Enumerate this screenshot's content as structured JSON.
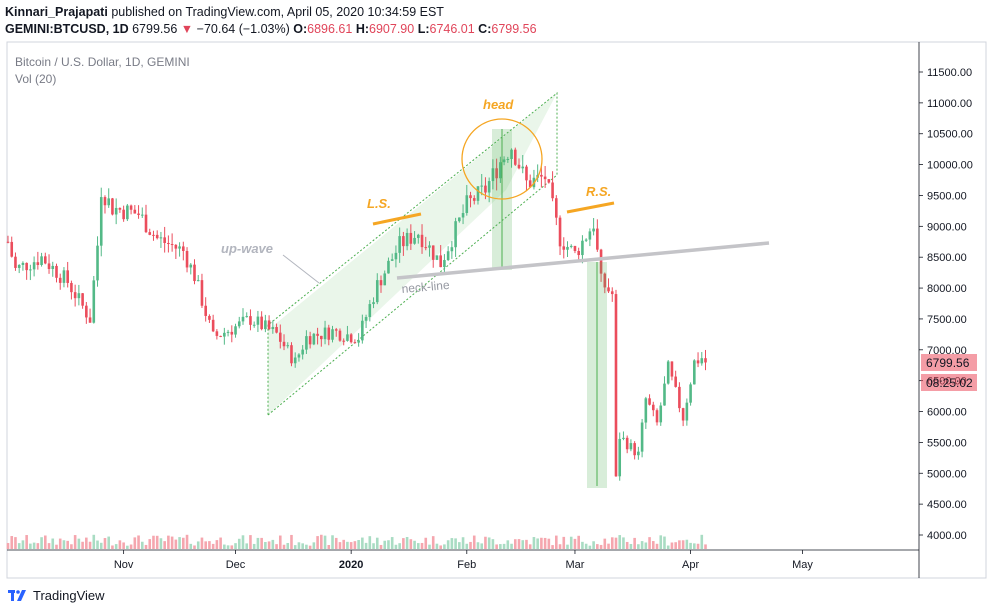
{
  "header": {
    "author": "Kinnari_Prajapati",
    "published_text": "published on TradingView.com, April 05, 2020 10:34:59 EST",
    "symbol": "GEMINI:BTCUSD, 1D",
    "last_price": "6799.56",
    "change_arrow": "▼",
    "change": "−70.64 (−1.03%)",
    "open_label": "O:",
    "open": "6896.61",
    "high_label": "H:",
    "high": "6907.90",
    "low_label": "L:",
    "low": "6746.01",
    "close_label": "C:",
    "close": "6799.56"
  },
  "chart_data": {
    "type": "candlestick",
    "title": "Bitcoin / U.S. Dollar, 1D, GEMINI",
    "volume_label": "Vol (20)",
    "x_ticks": [
      "Nov",
      "Dec",
      "2020",
      "Feb",
      "Mar",
      "Apr",
      "May"
    ],
    "y_ticks": [
      "11500.00",
      "11000.00",
      "10500.00",
      "10000.00",
      "9500.00",
      "9000.00",
      "8500.00",
      "8000.00",
      "7500.00",
      "7000.00",
      "6500.00",
      "6000.00",
      "5500.00",
      "5000.00",
      "4500.00",
      "4000.00"
    ],
    "ylim": [
      3870,
      11950
    ],
    "price_label": "6799.56",
    "countdown_label": "08:25:02",
    "colors": {
      "up": "#53b987",
      "down": "#eb4d5c",
      "up_vol": "#a9dcc3",
      "down_vol": "#f5a6ae",
      "channel": "#e6f5e6",
      "annotation": "#f5a623",
      "neckline": "#c4c4c8"
    },
    "annotations": {
      "head": "head",
      "left_shoulder": "L.S.",
      "right_shoulder": "R.S.",
      "up_wave": "up-wave",
      "neck_line": "neck-line"
    },
    "path_points": [
      [
        "2019-10-01",
        8750
      ],
      [
        "2019-10-03",
        8300
      ],
      [
        "2019-10-10",
        8500
      ],
      [
        "2019-10-17",
        8100
      ],
      [
        "2019-10-23",
        7500
      ],
      [
        "2019-10-25",
        8700
      ],
      [
        "2019-10-26",
        9600
      ],
      [
        "2019-10-29",
        9300
      ],
      [
        "2019-11-05",
        9200
      ],
      [
        "2019-11-10",
        8800
      ],
      [
        "2019-11-17",
        8600
      ],
      [
        "2019-11-20",
        8200
      ],
      [
        "2019-11-25",
        7200
      ],
      [
        "2019-12-02",
        7400
      ],
      [
        "2019-12-05",
        7500
      ],
      [
        "2019-12-12",
        7250
      ],
      [
        "2019-12-17",
        6800
      ],
      [
        "2019-12-20",
        7200
      ],
      [
        "2019-12-27",
        7300
      ],
      [
        "2020-01-03",
        7200
      ],
      [
        "2020-01-08",
        8050
      ],
      [
        "2020-01-14",
        8700
      ],
      [
        "2020-01-19",
        8900
      ],
      [
        "2020-01-25",
        8400
      ],
      [
        "2020-02-01",
        9350
      ],
      [
        "2020-02-06",
        9600
      ],
      [
        "2020-02-10",
        10050
      ],
      [
        "2020-02-13",
        10300
      ],
      [
        "2020-02-17",
        9700
      ],
      [
        "2020-02-22",
        9800
      ],
      [
        "2020-02-26",
        8800
      ],
      [
        "2020-03-01",
        8550
      ],
      [
        "2020-03-06",
        9050
      ],
      [
        "2020-03-08",
        8100
      ],
      [
        "2020-03-11",
        7900
      ],
      [
        "2020-03-12",
        4900
      ],
      [
        "2020-03-13",
        5600
      ],
      [
        "2020-03-18",
        5300
      ],
      [
        "2020-03-20",
        6200
      ],
      [
        "2020-03-23",
        5800
      ],
      [
        "2020-03-26",
        6700
      ],
      [
        "2020-03-30",
        5900
      ],
      [
        "2020-04-02",
        6800
      ],
      [
        "2020-04-04",
        6870
      ],
      [
        "2020-04-05",
        6800
      ]
    ]
  }
}
